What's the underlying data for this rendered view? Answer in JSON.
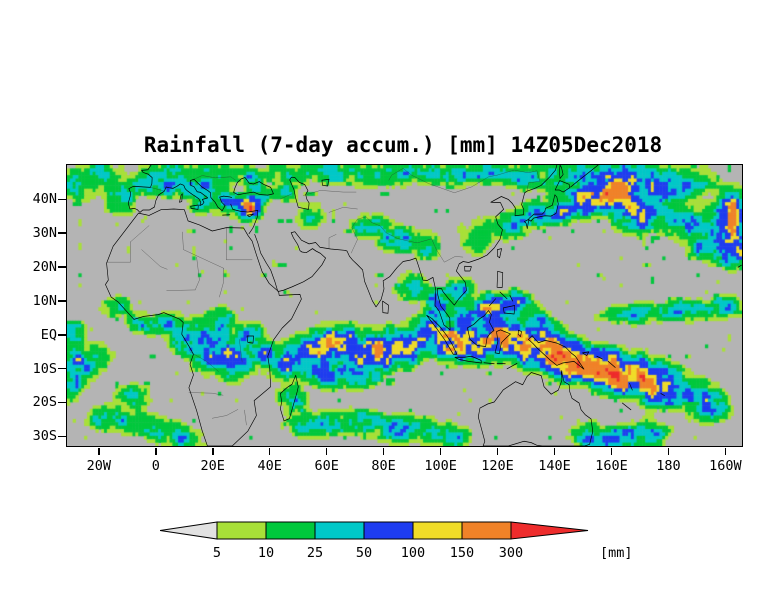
{
  "title": "Rainfall (7-day accum.) [mm] 14Z05Dec2018",
  "axes": {
    "lat_ticks": [
      {
        "value": 40,
        "label": "40N"
      },
      {
        "value": 30,
        "label": "30N"
      },
      {
        "value": 20,
        "label": "20N"
      },
      {
        "value": 10,
        "label": "10N"
      },
      {
        "value": 0,
        "label": "EQ"
      },
      {
        "value": -10,
        "label": "10S"
      },
      {
        "value": -20,
        "label": "20S"
      },
      {
        "value": -30,
        "label": "30S"
      }
    ],
    "lon_ticks": [
      {
        "value": -20,
        "label": "20W"
      },
      {
        "value": 0,
        "label": "0"
      },
      {
        "value": 20,
        "label": "20E"
      },
      {
        "value": 40,
        "label": "40E"
      },
      {
        "value": 60,
        "label": "60E"
      },
      {
        "value": 80,
        "label": "80E"
      },
      {
        "value": 100,
        "label": "100E"
      },
      {
        "value": 120,
        "label": "120E"
      },
      {
        "value": 140,
        "label": "140E"
      },
      {
        "value": 160,
        "label": "160E"
      },
      {
        "value": 180,
        "label": "180"
      },
      {
        "value": 200,
        "label": "160W"
      }
    ]
  },
  "legend": {
    "labels": [
      "5",
      "10",
      "25",
      "50",
      "100",
      "150",
      "300"
    ],
    "unit": "[mm]",
    "below_min_color": "#e2e2e2"
  },
  "chart_data": {
    "type": "heatmap",
    "title": "Rainfall (7-day accum.) [mm] 14Z05Dec2018",
    "units": "mm",
    "lon_range": [
      -31,
      206
    ],
    "lat_range": [
      -33,
      50
    ],
    "background_color": "#b4b4b4",
    "thresholds": [
      5,
      10,
      25,
      50,
      100,
      150,
      300
    ],
    "colors": [
      "#a8e038",
      "#00c83c",
      "#00c8c8",
      "#1e3cf0",
      "#f0dc28",
      "#f08228",
      "#ee2c2c"
    ],
    "legend_position": "bottom",
    "grid": false,
    "regions_format": [
      "lon_center_deg",
      "lat_center_deg",
      "lon_radius_deg",
      "lat_radius_deg",
      "peak_mm"
    ],
    "regions": [
      [
        -27,
        44,
        5,
        4,
        40
      ],
      [
        -20,
        47,
        6,
        3,
        55
      ],
      [
        -12,
        40,
        4,
        4,
        55
      ],
      [
        -5,
        45,
        5,
        3,
        35
      ],
      [
        3,
        44,
        4,
        3,
        45
      ],
      [
        10,
        44,
        4,
        3,
        60
      ],
      [
        17,
        41,
        4,
        4,
        75
      ],
      [
        25,
        39,
        4,
        3,
        85
      ],
      [
        33,
        37,
        3,
        2.5,
        260
      ],
      [
        36,
        41,
        3,
        3,
        75
      ],
      [
        45,
        42,
        4,
        2.5,
        50
      ],
      [
        5,
        48,
        6,
        3,
        40
      ],
      [
        20,
        47,
        6,
        3,
        45
      ],
      [
        33,
        47,
        5,
        3,
        40
      ],
      [
        45,
        48,
        5,
        3,
        35
      ],
      [
        54,
        35,
        4,
        3,
        40
      ],
      [
        60,
        48,
        8,
        3,
        40
      ],
      [
        75,
        47,
        8,
        3,
        35
      ],
      [
        90,
        48,
        8,
        3,
        40
      ],
      [
        105,
        47,
        8,
        3,
        35
      ],
      [
        118,
        48,
        6,
        3,
        45
      ],
      [
        130,
        47,
        5,
        3,
        50
      ],
      [
        75,
        32,
        5,
        3,
        50
      ],
      [
        85,
        28,
        5,
        3,
        70
      ],
      [
        95,
        26,
        4,
        3,
        60
      ],
      [
        113,
        29,
        5,
        4,
        40
      ],
      [
        124,
        32,
        5,
        3,
        60
      ],
      [
        133,
        35,
        5,
        3,
        70
      ],
      [
        142,
        37,
        5,
        3,
        90
      ],
      [
        150,
        46,
        12,
        4,
        70
      ],
      [
        168,
        47,
        10,
        4,
        60
      ],
      [
        185,
        45,
        10,
        4,
        50
      ],
      [
        152,
        39,
        6,
        3.5,
        130
      ],
      [
        161,
        42,
        6,
        3.5,
        260
      ],
      [
        170,
        36,
        6,
        4,
        170
      ],
      [
        179,
        42,
        6,
        3,
        100
      ],
      [
        186,
        33,
        6,
        4,
        70
      ],
      [
        194,
        27,
        5,
        4,
        90
      ],
      [
        202,
        35,
        4,
        5,
        260
      ],
      [
        203,
        25,
        4,
        4,
        120
      ],
      [
        -14,
        8,
        4,
        2.5,
        40
      ],
      [
        -5,
        3,
        5,
        2.5,
        45
      ],
      [
        4,
        3,
        5,
        2.5,
        60
      ],
      [
        12,
        -1,
        5,
        4,
        70
      ],
      [
        20,
        -4,
        6,
        5,
        110
      ],
      [
        28,
        -8,
        5,
        4,
        100
      ],
      [
        33,
        0,
        4,
        3,
        70
      ],
      [
        38,
        -5,
        4,
        3,
        60
      ],
      [
        23,
        4,
        4,
        3,
        60
      ],
      [
        -28,
        -10,
        5,
        4,
        70
      ],
      [
        -22,
        -7,
        5,
        3,
        60
      ],
      [
        -31,
        -16,
        4,
        3,
        50
      ],
      [
        -29,
        0,
        4,
        3,
        60
      ],
      [
        -15,
        -25,
        8,
        3,
        45
      ],
      [
        0,
        -28,
        7,
        3,
        50
      ],
      [
        -8,
        -18,
        5,
        3,
        35
      ],
      [
        10,
        -31,
        5,
        2.5,
        55
      ],
      [
        46,
        -9,
        6,
        3.5,
        80
      ],
      [
        55,
        -5,
        7,
        4,
        130
      ],
      [
        65,
        -3,
        7,
        4,
        160
      ],
      [
        75,
        -6,
        7,
        4,
        140
      ],
      [
        85,
        -4,
        7,
        4,
        150
      ],
      [
        60,
        -12,
        6,
        3,
        90
      ],
      [
        72,
        -12,
        6,
        3,
        80
      ],
      [
        48,
        -19,
        4,
        3,
        55
      ],
      [
        55,
        -27,
        7,
        3,
        50
      ],
      [
        70,
        -26,
        8,
        3,
        60
      ],
      [
        88,
        -28,
        8,
        3,
        70
      ],
      [
        103,
        -30,
        6,
        3,
        60
      ],
      [
        96,
        0,
        6,
        4,
        130
      ],
      [
        104,
        -2,
        6,
        4,
        150
      ],
      [
        112,
        -3,
        6,
        4,
        180
      ],
      [
        120,
        0,
        6,
        4,
        160
      ],
      [
        128,
        -3,
        6,
        4,
        200
      ],
      [
        136,
        -4,
        6,
        4,
        220
      ],
      [
        143,
        -7,
        6,
        4,
        280
      ],
      [
        110,
        5,
        5,
        3,
        90
      ],
      [
        118,
        8,
        5,
        3,
        110
      ],
      [
        126,
        9,
        5,
        3,
        100
      ],
      [
        134,
        3,
        5,
        3,
        90
      ],
      [
        90,
        14,
        4,
        3,
        70
      ],
      [
        99,
        9,
        4,
        3,
        90
      ],
      [
        107,
        13,
        4,
        3,
        60
      ],
      [
        152,
        -9,
        7,
        4,
        180
      ],
      [
        161,
        -11,
        7,
        4,
        320
      ],
      [
        171,
        -13,
        7,
        4,
        220
      ],
      [
        180,
        -16,
        7,
        4,
        120
      ],
      [
        190,
        -18,
        6,
        3,
        80
      ],
      [
        195,
        -22,
        6,
        3,
        60
      ],
      [
        143,
        -11,
        3,
        2,
        80
      ],
      [
        152,
        -30,
        4,
        3,
        70
      ],
      [
        163,
        -31,
        6,
        3,
        90
      ],
      [
        174,
        -29,
        5,
        3,
        70
      ],
      [
        168,
        6,
        10,
        2.5,
        45
      ],
      [
        185,
        7,
        8,
        2.5,
        55
      ],
      [
        200,
        8,
        5,
        2.5,
        70
      ]
    ]
  }
}
